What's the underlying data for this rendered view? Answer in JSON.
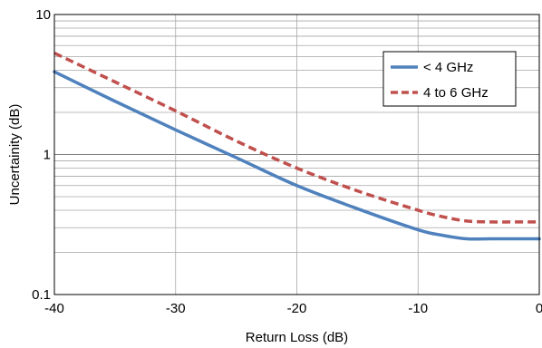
{
  "chart_data": {
    "type": "line",
    "title": "",
    "xlabel": "Return Loss (dB)",
    "ylabel": "Uncertainity (dB)",
    "xlim": [
      -40,
      0
    ],
    "ylim": [
      0.1,
      10
    ],
    "yscale": "log",
    "grid": true,
    "legend_position": "top-right",
    "x_ticks": [
      -40,
      -30,
      -20,
      -10,
      0
    ],
    "x_tick_labels": [
      "-40",
      "-30",
      "-20",
      "-10",
      "0"
    ],
    "y_ticks": [
      0.1,
      1,
      10
    ],
    "y_tick_labels": [
      "0.1",
      "1",
      "10"
    ],
    "series": [
      {
        "name": "< 4 GHz",
        "color": "#4f81bd",
        "dash": "solid",
        "x": [
          -40,
          -35,
          -30,
          -25,
          -20,
          -15,
          -10,
          -8,
          -6,
          -4,
          -2,
          0
        ],
        "y": [
          3.9,
          2.4,
          1.5,
          0.95,
          0.6,
          0.41,
          0.29,
          0.265,
          0.25,
          0.25,
          0.25,
          0.25
        ]
      },
      {
        "name": "4 to 6 GHz",
        "color": "#c0504d",
        "dash": "dashed",
        "x": [
          -40,
          -35,
          -30,
          -25,
          -20,
          -15,
          -10,
          -8,
          -6,
          -4,
          -2,
          0
        ],
        "y": [
          5.3,
          3.3,
          2.05,
          1.25,
          0.8,
          0.55,
          0.4,
          0.36,
          0.335,
          0.33,
          0.33,
          0.33
        ]
      }
    ]
  }
}
